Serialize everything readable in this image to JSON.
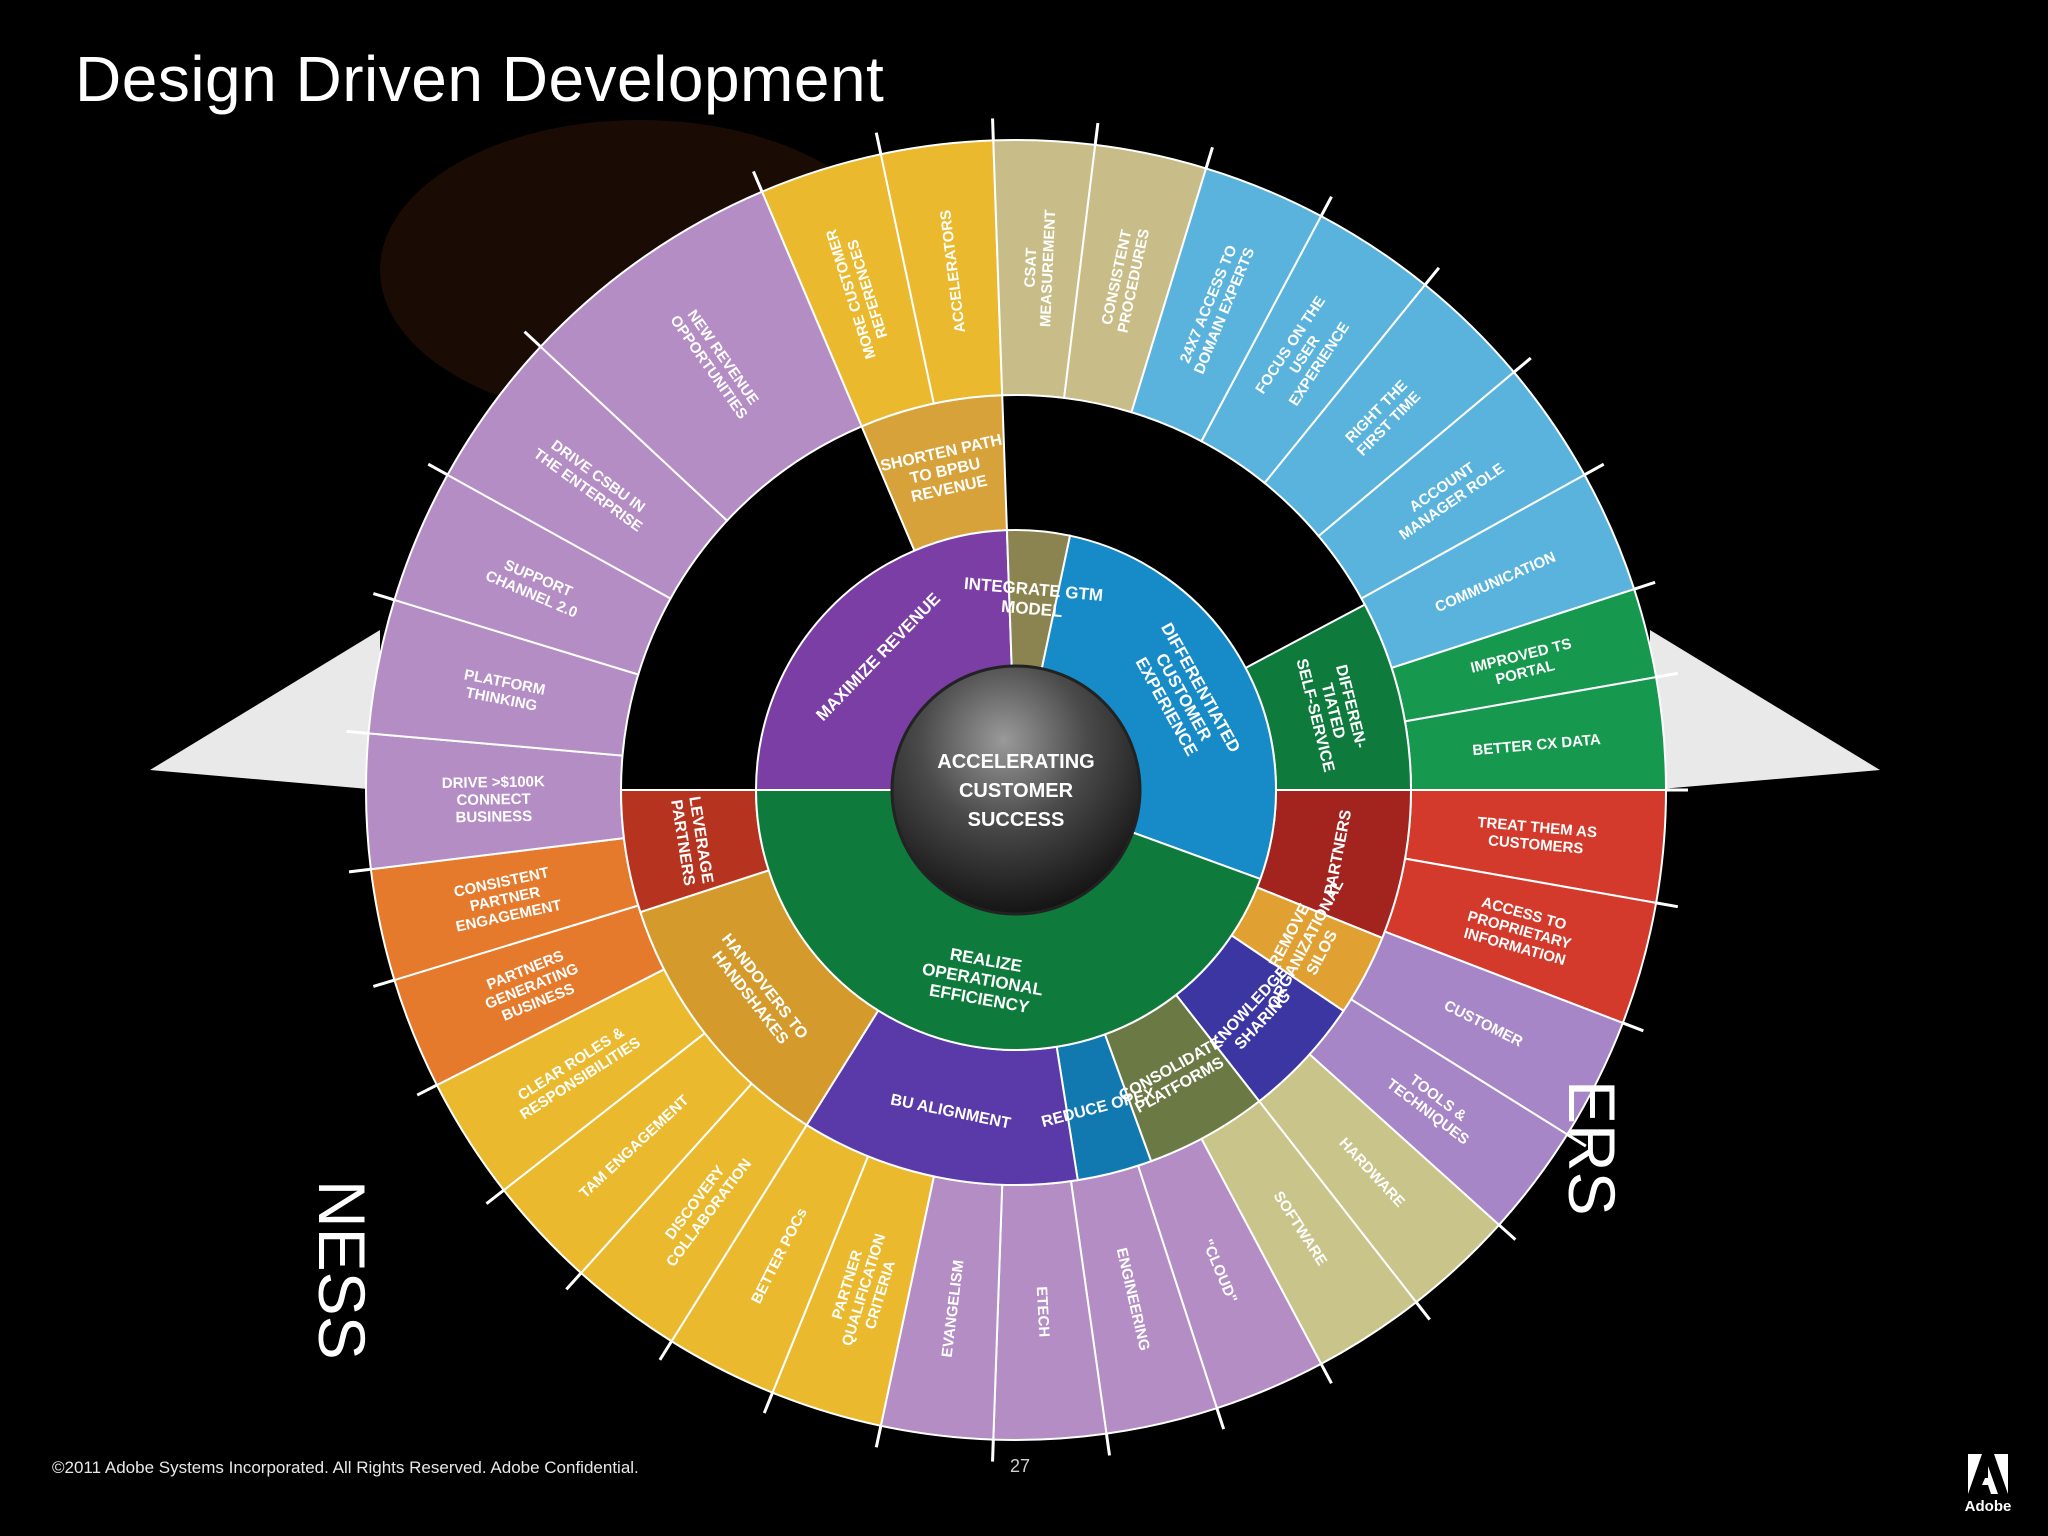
{
  "slide": {
    "title": "Design Driven Development",
    "footer": "©2011 Adobe Systems Incorporated.  All Rights Reserved. Adobe Confidential.",
    "page_number": "27",
    "logo_text": "Adobe",
    "side_text_left": "NESS",
    "side_text_right": "ERS"
  },
  "colors": {
    "background": "#000000",
    "purple": "#7a3ea5",
    "lavender": "#b38dc4",
    "olive": "#8b8450",
    "khaki": "#c8bd88",
    "blue": "#178ac8",
    "sky": "#5ab3dd",
    "dark_green": "#0e7a3c",
    "green": "#16984f",
    "dark_red": "#a3231f",
    "red": "#d33a2b",
    "orange": "#dd8f2c",
    "orange_outer": "#e57a2c",
    "yellow": "#eab92d",
    "indigo": "#3c36a3",
    "blue_dark": "#1279b0",
    "olive_green": "#6b7a45",
    "khaki_green": "#aeb37b",
    "gold": "#d59a2c",
    "burnt": "#b6431c"
  },
  "wheel": {
    "center_lines": [
      "ACCELERATING",
      "CUSTOMER",
      "SUCCESS"
    ],
    "inner": [
      {
        "label": "MAXIMIZE REVENUE",
        "color": "#7a3ea5"
      },
      {
        "label": "INTEGRATE GTM MODEL",
        "color": "#8b8450"
      },
      {
        "label": "DIFFERENTIATED CUSTOMER EXPERIENCE",
        "color": "#178ac8"
      },
      {
        "label": "REALIZE OPERATIONAL EFFICIENCY",
        "color": "#0e7a3c"
      }
    ],
    "middle": [
      {
        "label": "SHORTEN PATH TO BPBU REVENUE",
        "color": "#d8a23a"
      },
      {
        "label": "DIFFEREN- TIATED SELF-SERVICE",
        "color": "#0e7a3c"
      },
      {
        "label": "PARTNERS",
        "color": "#a3231f"
      },
      {
        "label": "REMOVE ORGANIZATIONAL SILOS",
        "color": "#e0a032"
      },
      {
        "label": "KNOWLEDGE SHARING",
        "color": "#3c36a3"
      },
      {
        "label": "CONSOLIDATE PLATFORMS",
        "color": "#6b7a45"
      },
      {
        "label": "REDUCE OPEX",
        "color": "#1279b0"
      },
      {
        "label": "BU ALIGNMENT",
        "color": "#5a3aa8"
      },
      {
        "label": "HANDOVERS TO HANDSHAKES",
        "color": "#d59a2c"
      },
      {
        "label": "LEVERAGE PARTNERS",
        "color": "#b6341f"
      }
    ],
    "outer": [
      {
        "label": "MORE CUSTOMER REFERENCES",
        "color": "#eab92d"
      },
      {
        "label": "ACCELERATORS",
        "color": "#eab92d"
      },
      {
        "label": "CSAT MEASUREMENT",
        "color": "#c8bd88"
      },
      {
        "label": "CONSISTENT PROCEDURES",
        "color": "#c8bd88"
      },
      {
        "label": "24X7 ACCESS TO DOMAIN EXPERTS",
        "color": "#5ab3dd"
      },
      {
        "label": "FOCUS ON THE USER EXPERIENCE",
        "color": "#5ab3dd"
      },
      {
        "label": "RIGHT THE FIRST TIME",
        "color": "#5ab3dd"
      },
      {
        "label": "ACCOUNT MANAGER ROLE",
        "color": "#5ab3dd"
      },
      {
        "label": "COMMUNICATION",
        "color": "#5ab3dd"
      },
      {
        "label": "IMPROVED TS PORTAL",
        "color": "#16984f"
      },
      {
        "label": "BETTER CX DATA",
        "color": "#16984f"
      },
      {
        "label": "TREAT THEM AS CUSTOMERS",
        "color": "#d33a2b"
      },
      {
        "label": "ACCESS TO PROPRIETARY INFORMATION",
        "color": "#d33a2b"
      },
      {
        "label": "CUSTOMER",
        "color": "#a686c7"
      },
      {
        "label": "TOOLS & TECHNIQUES",
        "color": "#a686c7"
      },
      {
        "label": "HARDWARE",
        "color": "#c8c48a"
      },
      {
        "label": "SOFTWARE",
        "color": "#c8c48a"
      },
      {
        "label": "\"CLOUD\"",
        "color": "#b38dc4"
      },
      {
        "label": "ENGINEERING",
        "color": "#b38dc4"
      },
      {
        "label": "ETECH",
        "color": "#b38dc4"
      },
      {
        "label": "EVANGELISM",
        "color": "#b38dc4"
      },
      {
        "label": "PARTNER QUALIFICATION CRITERIA",
        "color": "#eab92d"
      },
      {
        "label": "BETTER POCs",
        "color": "#eab92d"
      },
      {
        "label": "DISCOVERY COLLABORATION",
        "color": "#eab92d"
      },
      {
        "label": "TAM ENGAGEMENT",
        "color": "#eab92d"
      },
      {
        "label": "CLEAR ROLES & RESPONSIBILITIES",
        "color": "#eab92d"
      },
      {
        "label": "PARTNERS GENERATING BUSINESS",
        "color": "#e57a2c"
      },
      {
        "label": "CONSISTENT PARTNER ENGAGEMENT",
        "color": "#e57a2c"
      },
      {
        "label": "DRIVE >$100K CONNECT BUSINESS",
        "color": "#b38dc4"
      },
      {
        "label": "PLATFORM THINKING",
        "color": "#b38dc4"
      },
      {
        "label": "SUPPORT CHANNEL 2.0",
        "color": "#b38dc4"
      },
      {
        "label": "DRIVE CSBU IN THE ENTERPRISE",
        "color": "#b38dc4"
      },
      {
        "label": "NEW REVENUE OPPORTUNITIES",
        "color": "#b38dc4"
      }
    ]
  }
}
